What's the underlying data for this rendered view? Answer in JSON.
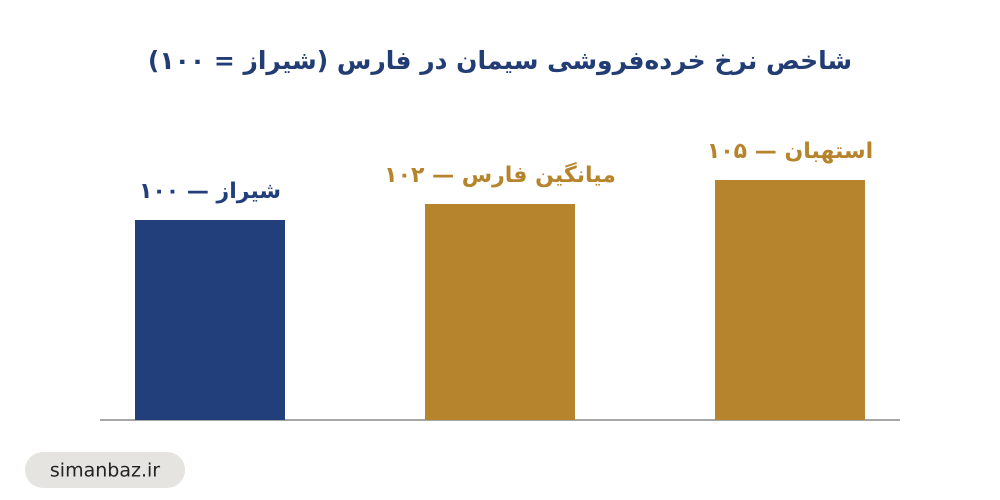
{
  "chart_data": {
    "type": "bar",
    "title": "شاخص نرخ خرده‌فروشی سیمان در فارس (شیراز = ۱۰۰)",
    "values": [
      100,
      102,
      105
    ],
    "value_labels": [
      "شیراز — ۱۰۰",
      "میانگین فارس — ۱۰۲",
      "استهبان — ۱۰۵"
    ],
    "colors": [
      "#223f7b",
      "#b5842c",
      "#b5842c"
    ],
    "ylim": [
      75,
      110
    ],
    "grid": false
  },
  "watermark": "simanbaz.ir"
}
